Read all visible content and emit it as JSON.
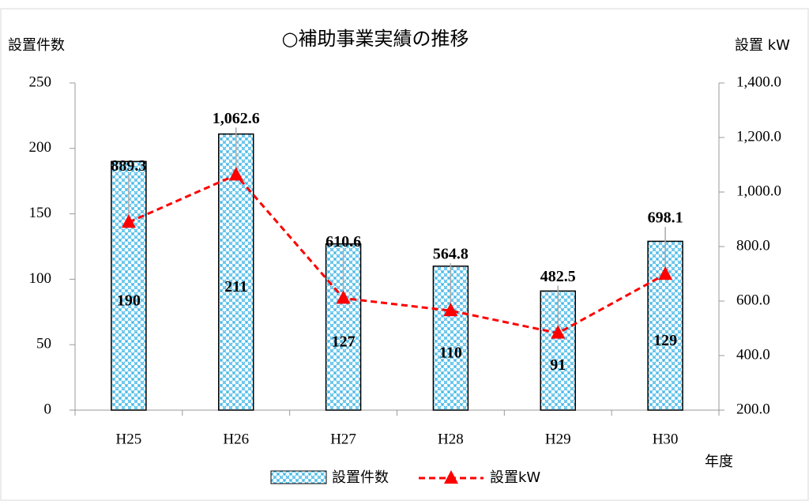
{
  "chart_data": {
    "type": "bar-line",
    "title": "○補助事業実績の推移",
    "y_label": "設置件数",
    "y2_label": "設置 kW",
    "x_label": "年度",
    "categories": [
      "H25",
      "H26",
      "H27",
      "H28",
      "H29",
      "H30"
    ],
    "series": [
      {
        "name": "設置件数",
        "type": "bar",
        "color": "#3ab4e6",
        "values": [
          190,
          211,
          127,
          110,
          91,
          129
        ]
      },
      {
        "name": "設置kW",
        "type": "line",
        "axis": "y2",
        "color": "#ff0000",
        "values": [
          889.3,
          1062.6,
          610.6,
          564.8,
          482.5,
          698.1
        ],
        "value_labels": [
          "889.3",
          "1,062.6",
          "610.6",
          "564.8",
          "482.5",
          "698.1"
        ]
      }
    ],
    "ylim": [
      0,
      250
    ],
    "yticks": [
      0,
      50,
      100,
      150,
      200,
      250
    ],
    "y2lim": [
      200,
      1400
    ],
    "y2ticks": [
      {
        "value": 200,
        "label": "200.0"
      },
      {
        "value": 400,
        "label": "400.0"
      },
      {
        "value": 600,
        "label": "600.0"
      },
      {
        "value": 800,
        "label": "800.0"
      },
      {
        "value": 1000,
        "label": "1,000.0"
      },
      {
        "value": 1200,
        "label": "1,200.0"
      },
      {
        "value": 1400,
        "label": "1,400.0"
      }
    ],
    "legend": "bottom"
  }
}
